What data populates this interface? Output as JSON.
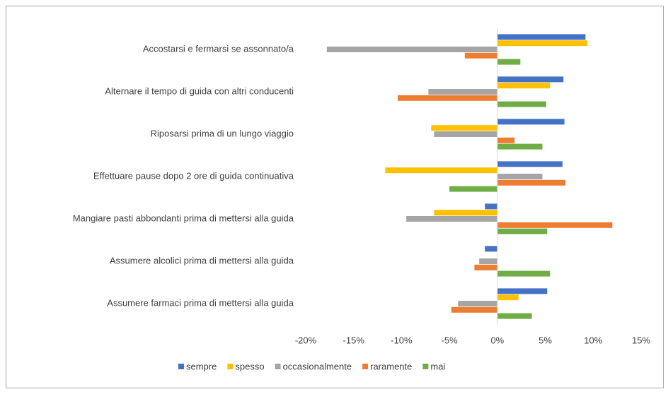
{
  "chart_data": {
    "type": "hbar",
    "categories": [
      "Accostarsi e fermarsi se assonnato/a",
      "Alternare il tempo di guida con altri conducenti",
      "Riposarsi prima di un lungo viaggio",
      "Effettuare pause dopo 2 ore di guida continuativa",
      "Mangiare pasti abbondanti prima di mettersi alla guida",
      "Assumere alcolici prima di mettersi alla guida",
      "Assumere farmaci prima di mettersi alla guida"
    ],
    "series": [
      {
        "name": "sempre",
        "color": "#4472c4",
        "values": [
          9.2,
          6.9,
          7.0,
          6.8,
          -1.3,
          -1.3,
          5.2
        ]
      },
      {
        "name": "spesso",
        "color": "#ffc000",
        "values": [
          9.4,
          5.5,
          -6.9,
          -11.7,
          -6.6,
          0,
          2.2
        ]
      },
      {
        "name": "occasionalmente",
        "color": "#a5a5a5",
        "values": [
          -17.8,
          -7.2,
          -6.6,
          4.7,
          -9.5,
          -1.9,
          -4.1
        ]
      },
      {
        "name": "raramente",
        "color": "#ed7d31",
        "values": [
          -3.4,
          -10.4,
          1.8,
          7.1,
          12.0,
          -2.4,
          -4.8
        ]
      },
      {
        "name": "mai",
        "color": "#70ad47",
        "values": [
          2.4,
          5.1,
          4.7,
          -5.0,
          5.2,
          5.5,
          3.6
        ]
      }
    ],
    "xlim": [
      -20,
      15
    ],
    "xticks": [
      {
        "value": -20,
        "label": "-20%"
      },
      {
        "value": -15,
        "label": "-15%"
      },
      {
        "value": -10,
        "label": "-10%"
      },
      {
        "value": -5,
        "label": "-5%"
      },
      {
        "value": 0,
        "label": "0%"
      },
      {
        "value": 5,
        "label": "5%"
      },
      {
        "value": 10,
        "label": "10%"
      },
      {
        "value": 15,
        "label": "15%"
      }
    ],
    "legend": "bottom"
  }
}
